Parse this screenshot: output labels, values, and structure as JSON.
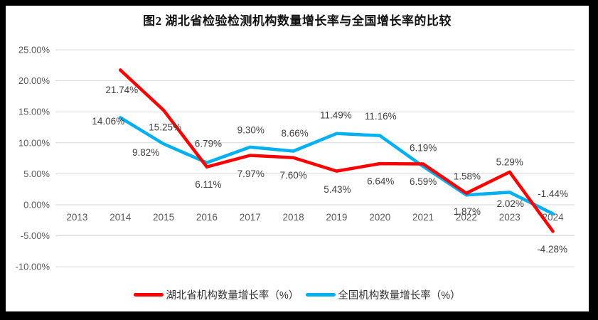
{
  "frame": {
    "border_color": "#000000",
    "canvas_background": "#ffffff"
  },
  "chart_data": {
    "type": "line",
    "title": "图2 湖北省检验检测机构数量增长率与全国增长率的比较",
    "categories": [
      "2013",
      "2014",
      "2015",
      "2016",
      "2017",
      "2018",
      "2019",
      "2020",
      "2021",
      "2022",
      "2023",
      "2024"
    ],
    "ylim": [
      -10,
      25
    ],
    "grid": true,
    "legend_position": "bottom",
    "y_ticks": [
      {
        "value": 25,
        "label": "25.00%"
      },
      {
        "value": 20,
        "label": "20.00%"
      },
      {
        "value": 15,
        "label": "15.00%"
      },
      {
        "value": 10,
        "label": "10.00%"
      },
      {
        "value": 5,
        "label": "5.00%"
      },
      {
        "value": 0,
        "label": "0.00%"
      },
      {
        "value": -5,
        "label": "-5.00%"
      },
      {
        "value": -10,
        "label": "-10.00%"
      }
    ],
    "colors": {
      "grid": "#D9D9D9",
      "axis_text": "#595959",
      "data_label_text": "#404040"
    },
    "series": [
      {
        "name": "湖北省机构数量增长率（%）",
        "color": "#FF0000",
        "values": [
          null,
          21.74,
          15.25,
          6.11,
          7.97,
          7.6,
          5.43,
          6.64,
          6.59,
          1.87,
          5.29,
          -4.28
        ],
        "labels": [
          null,
          "21.74%",
          "15.25%",
          "6.11%",
          "7.97%",
          "7.60%",
          "5.43%",
          "6.64%",
          "6.59%",
          "1.87%",
          "5.29%",
          "-4.28%"
        ],
        "label_offsets": [
          null,
          [
            2,
            28
          ],
          [
            2,
            24
          ],
          [
            2,
            25
          ],
          [
            1,
            26
          ],
          [
            0,
            25
          ],
          [
            1,
            26
          ],
          [
            1,
            25
          ],
          [
            0,
            25
          ],
          [
            1,
            26
          ],
          [
            0,
            -14
          ],
          [
            -1,
            25
          ]
        ]
      },
      {
        "name": "全国机构数量增长率（%）",
        "color": "#00B0F0",
        "values": [
          null,
          14.06,
          9.82,
          6.79,
          9.3,
          8.66,
          11.49,
          11.16,
          6.19,
          1.58,
          2.02,
          -1.44
        ],
        "labels": [
          null,
          "14.06%",
          "9.82%",
          "6.79%",
          "9.30%",
          "8.66%",
          "11.49%",
          "11.16%",
          "6.19%",
          "1.58%",
          "2.02%",
          "-1.44%"
        ],
        "label_offsets": [
          null,
          [
            -17,
            5
          ],
          [
            -25,
            12
          ],
          [
            2,
            -27
          ],
          [
            1,
            -24
          ],
          [
            2,
            -25
          ],
          [
            -1,
            -26
          ],
          [
            1,
            -27
          ],
          [
            0,
            -26
          ],
          [
            1,
            -26
          ],
          [
            1,
            16
          ],
          [
            0,
            -28
          ]
        ]
      }
    ]
  }
}
